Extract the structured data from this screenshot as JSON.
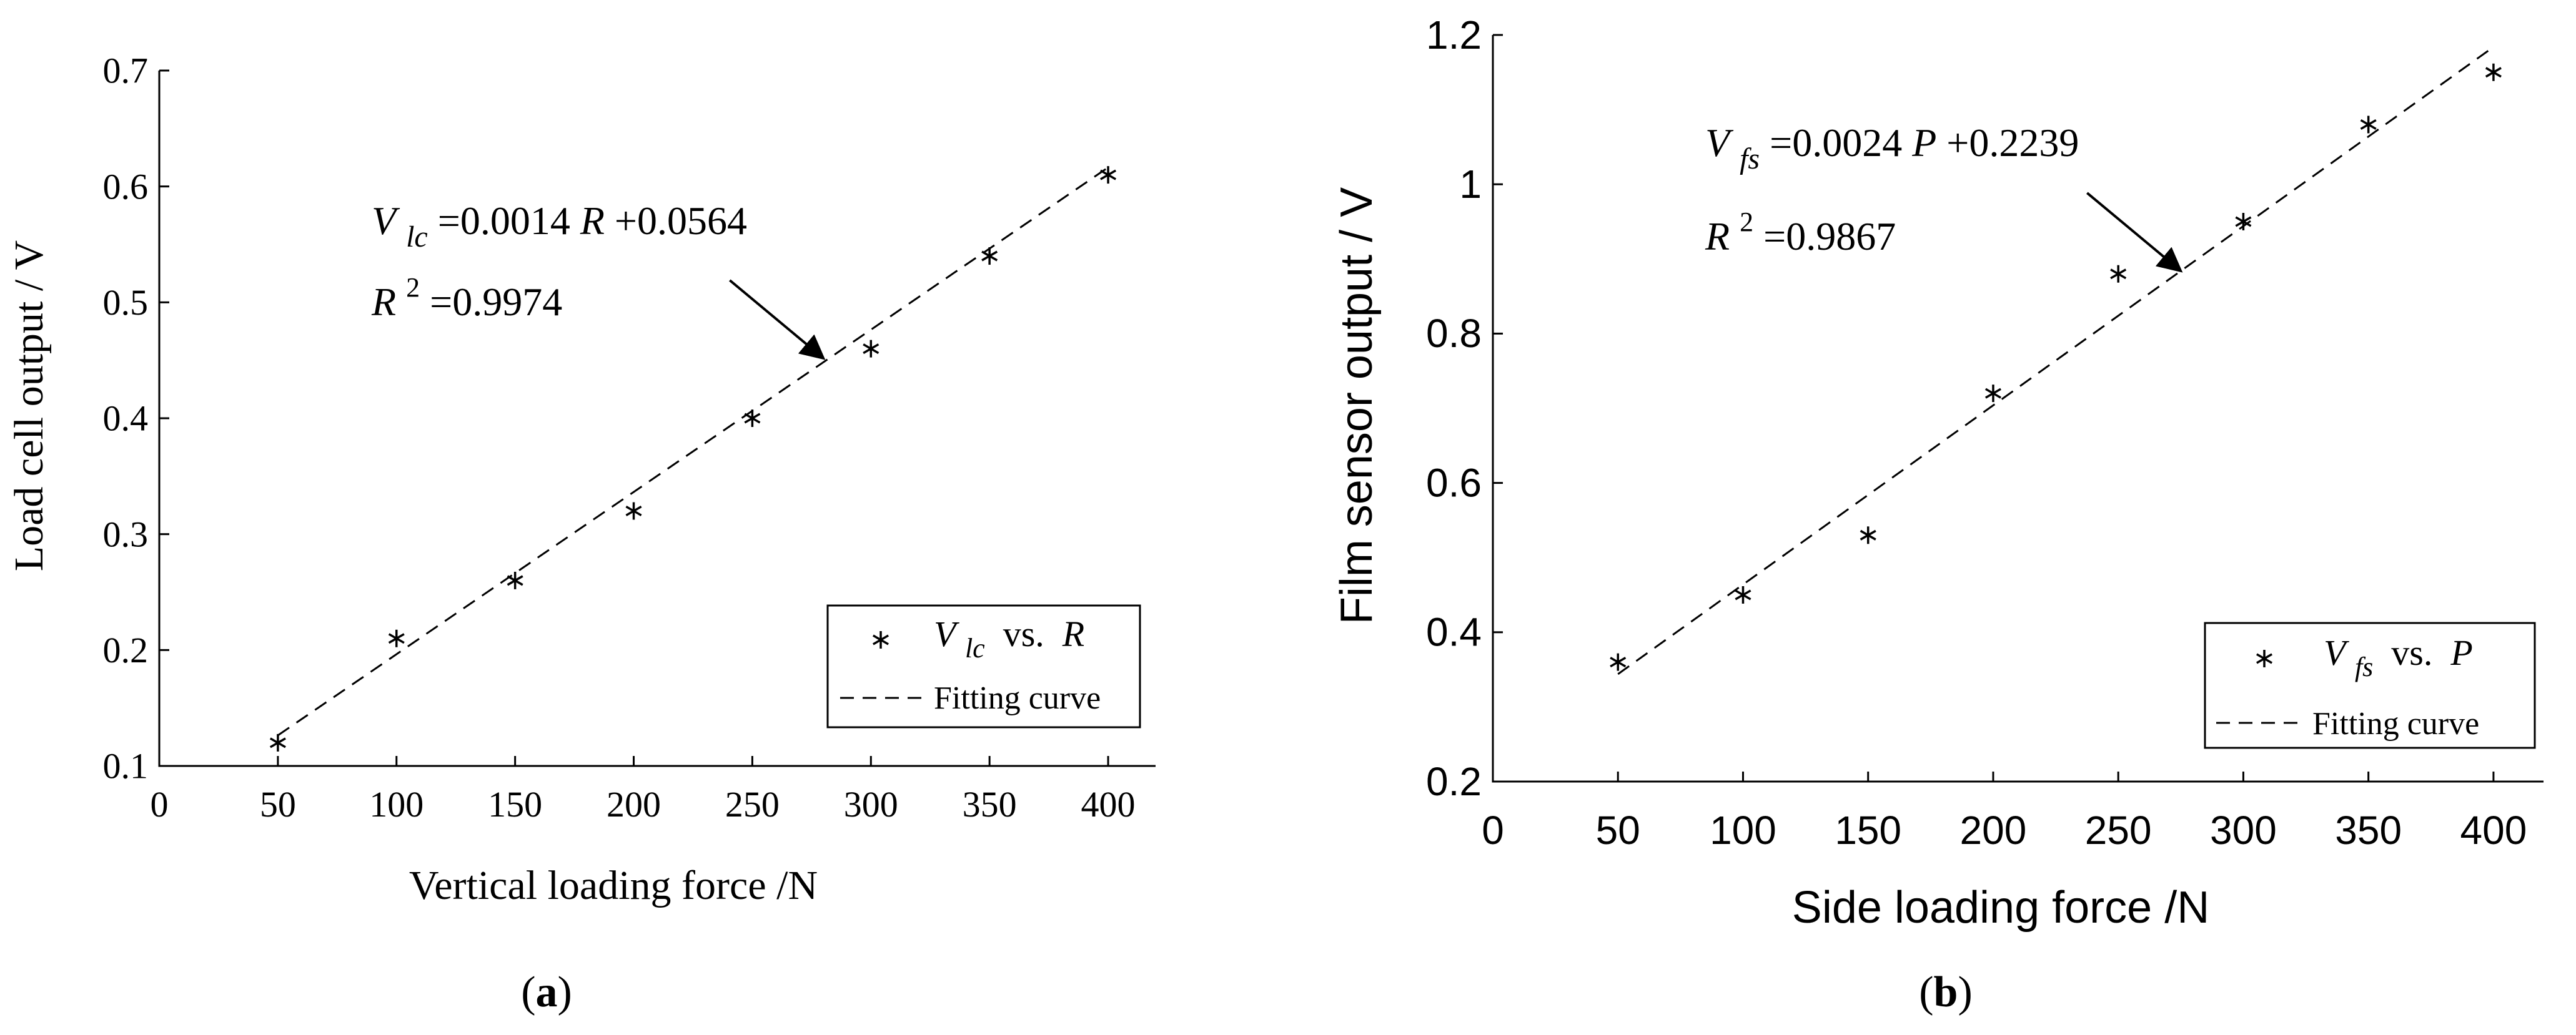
{
  "chart_data": [
    {
      "type": "scatter",
      "title": "",
      "xlabel": "Vertical loading force /N",
      "ylabel": "Load cell output / V",
      "xlim": [
        0,
        420
      ],
      "ylim": [
        0.1,
        0.7
      ],
      "xticks": [
        0,
        50,
        100,
        150,
        200,
        250,
        300,
        350,
        400
      ],
      "yticks": [
        0.1,
        0.2,
        0.3,
        0.4,
        0.5,
        0.6,
        0.7
      ],
      "xtick_labels": [
        "0",
        "50",
        "100",
        "150",
        "200",
        "250",
        "300",
        "350",
        "400"
      ],
      "ytick_labels": [
        "0.1",
        "0.2",
        "0.3",
        "0.4",
        "0.5",
        "0.6",
        "0.7"
      ],
      "grid": false,
      "legend_position": "bottom-right",
      "series": [
        {
          "name": "Vlc vs. R",
          "marker": "asterisk",
          "x": [
            50,
            100,
            150,
            200,
            250,
            300,
            350,
            400
          ],
          "y": [
            0.12,
            0.21,
            0.26,
            0.32,
            0.4,
            0.46,
            0.54,
            0.61
          ]
        },
        {
          "name": "Fitting curve",
          "style": "dashed",
          "slope": 0.0014,
          "intercept": 0.0564,
          "x_range": [
            50,
            400
          ]
        }
      ],
      "legend": {
        "marker_entry": {
          "v": "V",
          "sub": "lc",
          "vs": " vs. ",
          "var": "R"
        },
        "line_entry": "Fitting curve"
      },
      "annotation": {
        "eq_v": "V",
        "eq_sub": "lc",
        "eq_rest_a": "=0.0014",
        "eq_var": "R",
        "eq_rest_b": "+0.0564",
        "r2_r": "R",
        "r2_sup": "2",
        "r2_val": "=0.9974",
        "arrow_target": [
          280,
          0.4517
        ]
      },
      "panel_label": "a"
    },
    {
      "type": "scatter",
      "title": "",
      "xlabel": "Side loading force /N",
      "ylabel": "Film sensor output / V",
      "xlim": [
        0,
        420
      ],
      "ylim": [
        0.2,
        1.2
      ],
      "xticks": [
        0,
        50,
        100,
        150,
        200,
        250,
        300,
        350,
        400
      ],
      "yticks": [
        0.2,
        0.4,
        0.6,
        0.8,
        1.0,
        1.2
      ],
      "xtick_labels": [
        "0",
        "50",
        "100",
        "150",
        "200",
        "250",
        "300",
        "350",
        "400"
      ],
      "ytick_labels": [
        "0.2",
        "0.4",
        "0.6",
        "0.8",
        "1",
        "1.2"
      ],
      "grid": false,
      "legend_position": "bottom-right",
      "series": [
        {
          "name": "Vfs vs. P",
          "marker": "asterisk",
          "x": [
            50,
            100,
            150,
            200,
            250,
            300,
            350,
            400
          ],
          "y": [
            0.36,
            0.45,
            0.53,
            0.72,
            0.88,
            0.95,
            1.08,
            1.15
          ]
        },
        {
          "name": "Fitting curve",
          "style": "dashed",
          "slope": 0.0024,
          "intercept": 0.2239,
          "x_range": [
            50,
            400
          ]
        }
      ],
      "legend": {
        "marker_entry": {
          "v": "V",
          "sub": "fs",
          "vs": " vs. ",
          "var": "P"
        },
        "line_entry": "Fitting curve"
      },
      "annotation": {
        "eq_v": "V",
        "eq_sub": "fs",
        "eq_rest_a": "=0.0024",
        "eq_var": "P",
        "eq_rest_b": "+0.2239",
        "r2_r": "R",
        "r2_sup": "2",
        "r2_val": "=0.9867",
        "arrow_target": [
          275,
          0.8839
        ]
      },
      "panel_label": "b"
    }
  ],
  "captions": {
    "a_open": "(",
    "a_letter": "a",
    "a_close": ")",
    "b_open": "(",
    "b_letter": "b",
    "b_close": ")"
  }
}
